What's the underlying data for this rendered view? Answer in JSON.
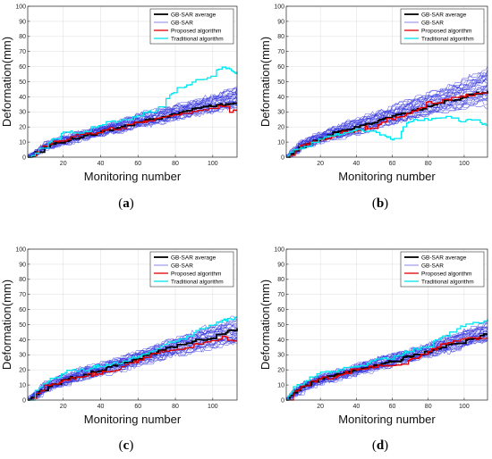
{
  "figure": {
    "panels": [
      "a",
      "b",
      "c",
      "d"
    ]
  },
  "colors": {
    "average": "#000000",
    "gbsar": "#3333dd",
    "proposed": "#e00000",
    "traditional": "#00e5ee"
  },
  "chart_data": [
    {
      "type": "line",
      "panel_label": "a",
      "title": "",
      "xlabel": "Monitoring number",
      "ylabel": "Deformation(mm)",
      "xlim": [
        1,
        113
      ],
      "ylim": [
        0,
        100
      ],
      "xticks": [
        20,
        40,
        60,
        80,
        100
      ],
      "yticks": [
        0,
        10,
        20,
        30,
        40,
        50,
        60,
        70,
        80,
        90,
        100
      ],
      "grid": true,
      "legend": "top-right",
      "legend_entries": [
        "GB-SAR average",
        "GB-SAR",
        "Proposed algorithm",
        "Traditional algorithm"
      ],
      "x": [
        1,
        5,
        10,
        20,
        30,
        40,
        50,
        60,
        70,
        80,
        90,
        100,
        105,
        110,
        113
      ],
      "series": [
        {
          "name": "GB-SAR average",
          "values": [
            0,
            3,
            7,
            11,
            14,
            17,
            20,
            23,
            26,
            29,
            32,
            34,
            35,
            36,
            37
          ]
        },
        {
          "name": "Proposed algorithm",
          "values": [
            0,
            2,
            8,
            12,
            15,
            18,
            19,
            23,
            25,
            28,
            31,
            33,
            34,
            30,
            30
          ]
        },
        {
          "name": "Traditional algorithm",
          "values": [
            0,
            3,
            8,
            16,
            17,
            22,
            24,
            28,
            31,
            45,
            50,
            55,
            60,
            57,
            56
          ]
        }
      ],
      "gbsar_band": {
        "lower": [
          0,
          2,
          5,
          9,
          12,
          15,
          17,
          20,
          22,
          25,
          28,
          30,
          31,
          32,
          33
        ],
        "upper": [
          0,
          4,
          9,
          14,
          17,
          20,
          24,
          28,
          31,
          34,
          37,
          41,
          43,
          45,
          47
        ]
      }
    },
    {
      "type": "line",
      "panel_label": "b",
      "title": "",
      "xlabel": "Monitoring number",
      "ylabel": "Deformation(mm)",
      "xlim": [
        1,
        113
      ],
      "ylim": [
        0,
        100
      ],
      "xticks": [
        20,
        40,
        60,
        80,
        100
      ],
      "yticks": [
        0,
        10,
        20,
        30,
        40,
        50,
        60,
        70,
        80,
        90,
        100
      ],
      "grid": true,
      "legend": "top-right",
      "legend_entries": [
        "GB-SAR average",
        "GB-SAR",
        "Proposed algorithm",
        "Traditional algorithm"
      ],
      "x": [
        1,
        5,
        10,
        20,
        30,
        40,
        50,
        60,
        70,
        80,
        90,
        100,
        105,
        110,
        113
      ],
      "series": [
        {
          "name": "GB-SAR average",
          "values": [
            0,
            4,
            8,
            13,
            17,
            20,
            23,
            27,
            30,
            34,
            37,
            40,
            42,
            43,
            44
          ]
        },
        {
          "name": "Proposed algorithm",
          "values": [
            0,
            3,
            8,
            12,
            16,
            18,
            21,
            26,
            29,
            36,
            38,
            41,
            41,
            42,
            43
          ]
        },
        {
          "name": "Traditional algorithm",
          "values": [
            0,
            5,
            6,
            12,
            15,
            18,
            17,
            12,
            24,
            25,
            26,
            24,
            25,
            22,
            21
          ]
        }
      ],
      "gbsar_band": {
        "lower": [
          0,
          2,
          6,
          10,
          13,
          16,
          19,
          22,
          25,
          28,
          31,
          33,
          34,
          35,
          36
        ],
        "upper": [
          0,
          6,
          11,
          16,
          21,
          25,
          29,
          33,
          38,
          42,
          46,
          51,
          54,
          57,
          59
        ]
      }
    },
    {
      "type": "line",
      "panel_label": "c",
      "title": "",
      "xlabel": "Monitoring number",
      "ylabel": "Deformation(mm)",
      "xlim": [
        1,
        113
      ],
      "ylim": [
        0,
        100
      ],
      "xticks": [
        20,
        40,
        60,
        80,
        100
      ],
      "yticks": [
        0,
        10,
        20,
        30,
        40,
        50,
        60,
        70,
        80,
        90,
        100
      ],
      "grid": true,
      "legend": "top-right",
      "legend_entries": [
        "GB-SAR average",
        "GB-SAR",
        "Proposed algorithm",
        "Traditional algorithm"
      ],
      "x": [
        1,
        5,
        10,
        20,
        30,
        40,
        50,
        60,
        70,
        80,
        90,
        100,
        105,
        110,
        113
      ],
      "series": [
        {
          "name": "GB-SAR average",
          "values": [
            0,
            4,
            8,
            13,
            17,
            20,
            24,
            28,
            32,
            36,
            39,
            42,
            44,
            46,
            47
          ]
        },
        {
          "name": "Proposed algorithm",
          "values": [
            0,
            3,
            10,
            13,
            16,
            18,
            21,
            26,
            31,
            33,
            36,
            40,
            42,
            40,
            40
          ]
        },
        {
          "name": "Traditional algorithm",
          "values": [
            0,
            6,
            11,
            19,
            20,
            23,
            25,
            29,
            34,
            40,
            45,
            50,
            53,
            54,
            55
          ]
        }
      ],
      "gbsar_band": {
        "lower": [
          0,
          2,
          6,
          10,
          14,
          17,
          20,
          24,
          27,
          30,
          33,
          35,
          36,
          37,
          38
        ],
        "upper": [
          0,
          6,
          11,
          16,
          21,
          24,
          28,
          32,
          36,
          41,
          45,
          49,
          51,
          53,
          54
        ]
      }
    },
    {
      "type": "line",
      "panel_label": "d",
      "title": "",
      "xlabel": "Monitoring number",
      "ylabel": "Deformation(mm)",
      "xlim": [
        1,
        113
      ],
      "ylim": [
        0,
        100
      ],
      "xticks": [
        20,
        40,
        60,
        80,
        100
      ],
      "yticks": [
        0,
        10,
        20,
        30,
        40,
        50,
        60,
        70,
        80,
        90,
        100
      ],
      "grid": true,
      "legend": "top-right",
      "legend_entries": [
        "GB-SAR average",
        "GB-SAR",
        "Proposed algorithm",
        "Traditional algorithm"
      ],
      "x": [
        1,
        5,
        10,
        20,
        30,
        40,
        50,
        60,
        70,
        80,
        90,
        100,
        105,
        110,
        113
      ],
      "series": [
        {
          "name": "GB-SAR average",
          "values": [
            0,
            5,
            9,
            14,
            17,
            20,
            23,
            26,
            29,
            32,
            36,
            39,
            41,
            43,
            44
          ]
        },
        {
          "name": "Proposed algorithm",
          "values": [
            0,
            5,
            10,
            14,
            16,
            21,
            22,
            22,
            27,
            32,
            38,
            41,
            41,
            41,
            42
          ]
        },
        {
          "name": "Traditional algorithm",
          "values": [
            0,
            8,
            12,
            18,
            20,
            23,
            26,
            28,
            33,
            36,
            45,
            50,
            51,
            52,
            53
          ]
        }
      ],
      "gbsar_band": {
        "lower": [
          0,
          3,
          7,
          11,
          14,
          17,
          20,
          23,
          26,
          29,
          32,
          35,
          37,
          38,
          39
        ],
        "upper": [
          0,
          7,
          11,
          16,
          20,
          23,
          27,
          30,
          33,
          37,
          42,
          46,
          48,
          50,
          51
        ]
      }
    }
  ]
}
